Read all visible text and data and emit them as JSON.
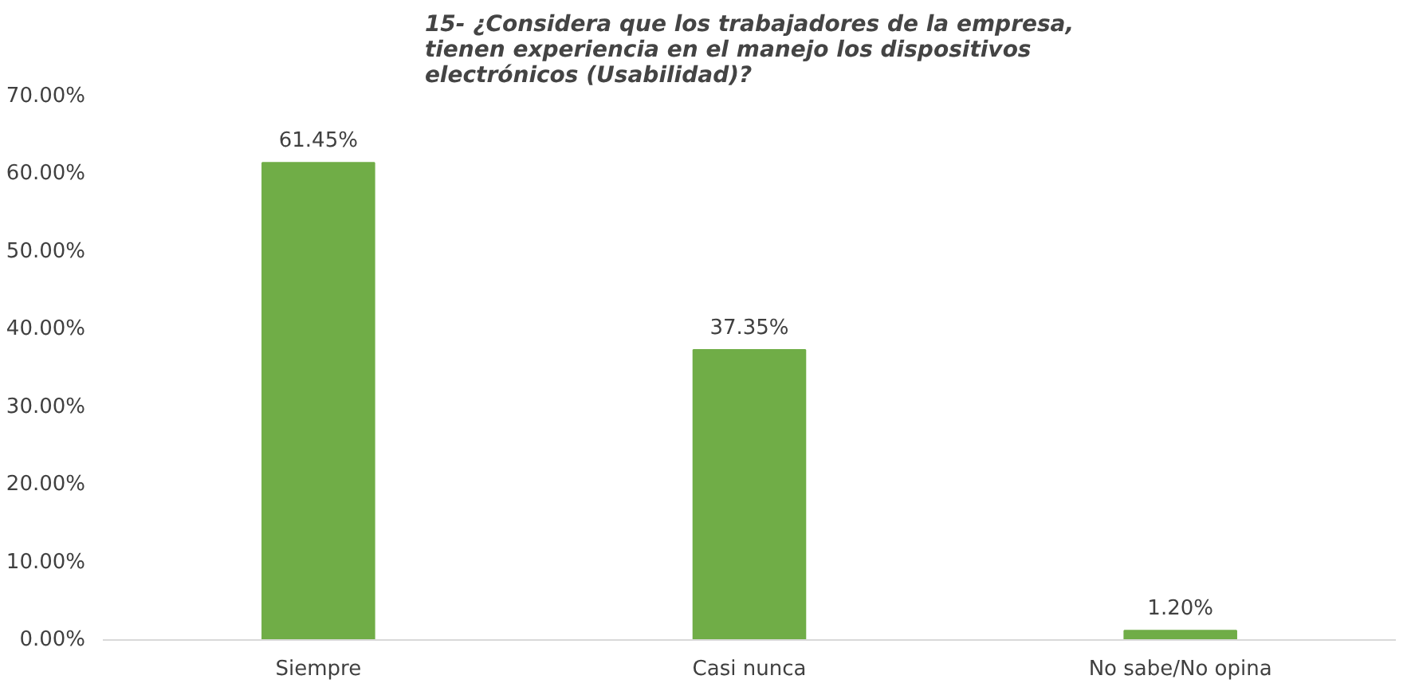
{
  "chart_data": {
    "type": "bar",
    "title": "15- ¿Considera que los trabajadores de la empresa,\ntienen experiencia en el manejo los dispositivos\nelectrónicos (Usabilidad)?",
    "categories": [
      "Siempre",
      "Casi nunca",
      "No sabe/No opina"
    ],
    "values": [
      61.45,
      37.35,
      1.2
    ],
    "value_labels": [
      "61.45%",
      "37.35%",
      "1.20%"
    ],
    "color": "#70ad47",
    "ylim": [
      0,
      70
    ],
    "yticks": [
      {
        "value": 0,
        "label": "0.00%"
      },
      {
        "value": 10,
        "label": "10.00%"
      },
      {
        "value": 20,
        "label": "20.00%"
      },
      {
        "value": 30,
        "label": "30.00%"
      },
      {
        "value": 40,
        "label": "40.00%"
      },
      {
        "value": 50,
        "label": "50.00%"
      },
      {
        "value": 60,
        "label": "60.00%"
      },
      {
        "value": 70,
        "label": "70.00%"
      }
    ]
  }
}
